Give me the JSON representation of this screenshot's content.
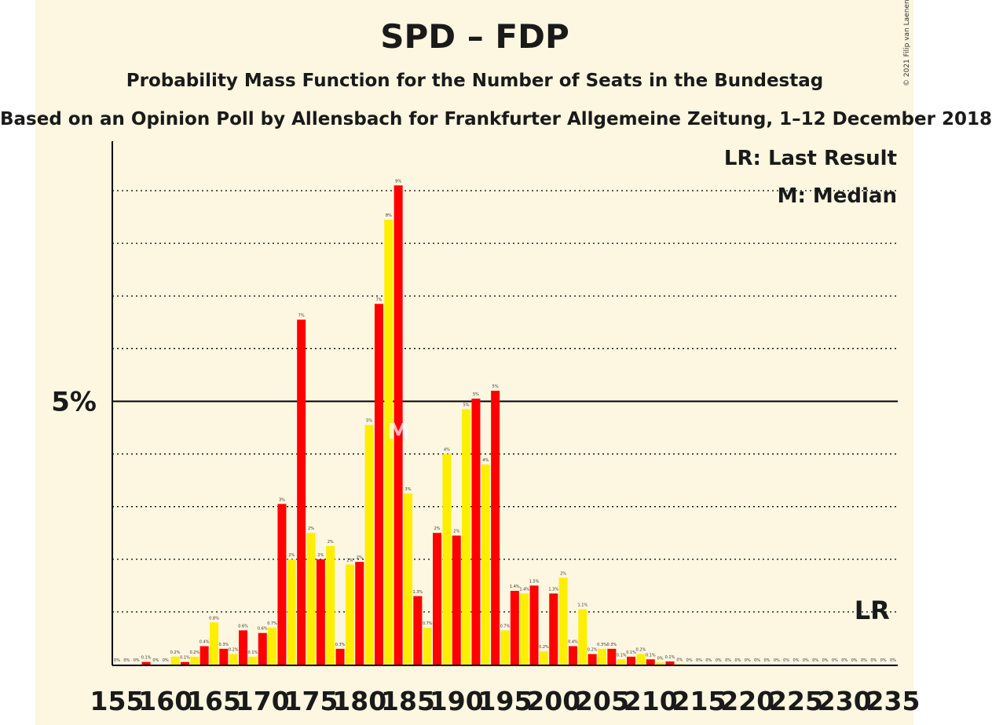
{
  "title": "SPD – FDP",
  "subtitle": "Probability Mass Function for the Number of Seats in the Bundestag",
  "source": "Based on an Opinion Poll by Allensbach for Frankfurter Allgemeine Zeitung, 1–12 December 2018",
  "credit": "© 2021 Filip van Laenen",
  "legend": {
    "last_result": "LR: Last Result",
    "median": "M: Median"
  },
  "markers": {
    "median_label": "M",
    "median_seat": 184,
    "last_result_label": "LR",
    "last_result_seat": 233
  },
  "colors": {
    "background": "#fdf6e0",
    "even_bar": "#ff0000",
    "odd_bar": "#ffee00",
    "axis": "#000000",
    "grid": "#000000"
  },
  "chart_data": {
    "type": "bar",
    "xlabel": "",
    "ylabel": "",
    "ylim": [
      0,
      10
    ],
    "grid": "dotted horizontal every 1%",
    "y_tick_labels": [
      {
        "value": 5,
        "label": "5%"
      }
    ],
    "x_tick_labels": [
      "155",
      "160",
      "165",
      "170",
      "175",
      "180",
      "185",
      "190",
      "195",
      "200",
      "205",
      "210",
      "215",
      "220",
      "225",
      "230",
      "235"
    ],
    "seats": [
      155,
      156,
      157,
      158,
      159,
      160,
      161,
      162,
      163,
      164,
      165,
      166,
      167,
      168,
      169,
      170,
      171,
      172,
      173,
      174,
      175,
      176,
      177,
      178,
      179,
      180,
      181,
      182,
      183,
      184,
      185,
      186,
      187,
      188,
      189,
      190,
      191,
      192,
      193,
      194,
      195,
      196,
      197,
      198,
      199,
      200,
      201,
      202,
      203,
      204,
      205,
      206,
      207,
      208,
      209,
      210,
      211,
      212,
      213,
      214,
      215,
      216,
      217,
      218,
      219,
      220,
      221,
      222,
      223,
      224,
      225,
      226,
      227,
      228,
      229,
      230,
      231,
      232,
      233,
      234,
      235
    ],
    "values": [
      0,
      0,
      0,
      0.05,
      0,
      0,
      0.15,
      0.05,
      0.15,
      0.35,
      0.8,
      0.3,
      0.2,
      0.65,
      0.15,
      0.6,
      0.7,
      3.05,
      2.0,
      6.55,
      2.5,
      2.0,
      2.25,
      0.3,
      1.9,
      1.95,
      4.55,
      6.85,
      8.45,
      9.1,
      3.25,
      1.3,
      0.7,
      2.5,
      4.0,
      2.45,
      4.85,
      5.05,
      3.8,
      5.2,
      0.65,
      1.4,
      1.35,
      1.5,
      0.25,
      1.35,
      1.65,
      0.35,
      1.05,
      0.2,
      0.3,
      0.3,
      0.1,
      0.15,
      0.2,
      0.1,
      0.04,
      0.06,
      0.01,
      0,
      0,
      0,
      0,
      0,
      0,
      0,
      0,
      0,
      0,
      0,
      0,
      0,
      0,
      0,
      0,
      0,
      0,
      0,
      0,
      0,
      0
    ],
    "labels": [
      "0%",
      "0%",
      "0%",
      "0.1%",
      "0%",
      "0%",
      "0.2%",
      "0.1%",
      "0.2%",
      "0.4%",
      "0.8%",
      "0.3%",
      "0.2%",
      "0.6%",
      "0.1%",
      "0.6%",
      "0.7%",
      "3%",
      "2%",
      "7%",
      "2%",
      "2%",
      "2%",
      "0.3%",
      "2%",
      "2%",
      "5%",
      "7%",
      "8%",
      "9%",
      "3%",
      "1.3%",
      "0.7%",
      "2%",
      "4%",
      "2%",
      "5%",
      "5%",
      "4%",
      "5%",
      "0.7%",
      "1.4%",
      "1.4%",
      "1.5%",
      "0.2%",
      "1.3%",
      "2%",
      "0.4%",
      "1.1%",
      "0.2%",
      "0.3%",
      "0.3%",
      "0.1%",
      "0.1%",
      "0.2%",
      "0.1%",
      "0%",
      "0.1%",
      "0%",
      "0%",
      "0%",
      "0%",
      "0%",
      "0%",
      "0%",
      "0%",
      "0%",
      "0%",
      "0%",
      "0%",
      "0%",
      "0%",
      "0%",
      "0%",
      "0%",
      "0%",
      "0%",
      "0%",
      "0%",
      "0%",
      "0%"
    ]
  }
}
